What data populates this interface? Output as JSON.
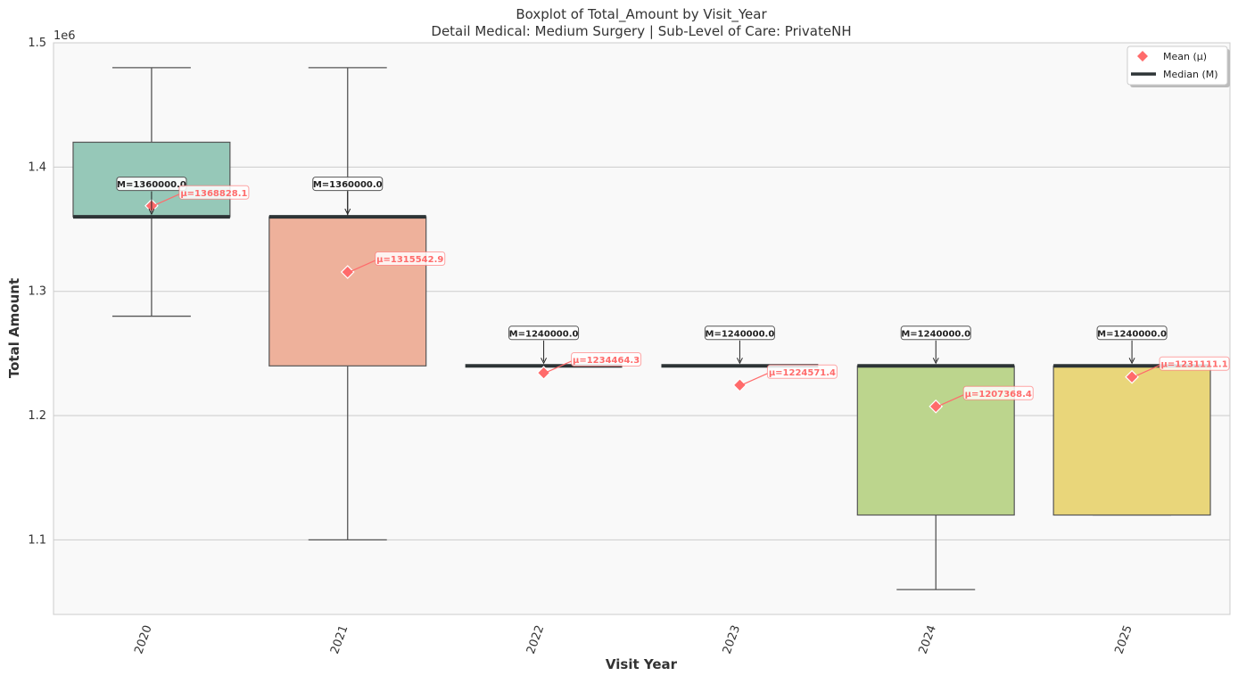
{
  "chart_data": {
    "type": "box",
    "title": "Boxplot of Total_Amount by Visit_Year",
    "subtitle": "Detail Medical: Medium Surgery | Sub-Level of Care: PrivateNH",
    "xlabel": "Visit Year",
    "ylabel": "Total Amount",
    "y_offset_label": "1e6",
    "ylim": [
      1.04,
      1.5
    ],
    "y_ticks": [
      1.1,
      1.2,
      1.3,
      1.4,
      1.5
    ],
    "y_tick_labels": [
      "1.1",
      "1.2",
      "1.3",
      "1.4",
      "1.5"
    ],
    "grid": true,
    "legend_position": "top-right",
    "legend": [
      {
        "label": "Mean (μ)",
        "color": "#ff6b6b",
        "marker": "diamond"
      },
      {
        "label": "Median (M)",
        "color": "#2d3436",
        "marker": "line"
      }
    ],
    "categories": [
      "2020",
      "2021",
      "2022",
      "2023",
      "2024",
      "2025"
    ],
    "boxes": [
      {
        "category": "2020",
        "whisker_low": 1.28,
        "q1": 1.36,
        "median": 1.36,
        "q3": 1.42,
        "whisker_high": 1.48,
        "mean": 1.3688281,
        "color": "#96c8b8",
        "median_label": "M=1360000.0",
        "mean_label": "μ=1368828.1"
      },
      {
        "category": "2021",
        "whisker_low": 1.1,
        "q1": 1.24,
        "median": 1.36,
        "q3": 1.36,
        "whisker_high": 1.48,
        "mean": 1.3155429,
        "color": "#eeb19b",
        "median_label": "M=1360000.0",
        "mean_label": "μ=1315542.9"
      },
      {
        "category": "2022",
        "whisker_low": 1.24,
        "q1": 1.24,
        "median": 1.24,
        "q3": 1.24,
        "whisker_high": 1.24,
        "mean": 1.2344643,
        "color": "#a5b3d2",
        "median_label": "M=1240000.0",
        "mean_label": "μ=1234464.3"
      },
      {
        "category": "2023",
        "whisker_low": 1.24,
        "q1": 1.24,
        "median": 1.24,
        "q3": 1.24,
        "whisker_high": 1.24,
        "mean": 1.2245714,
        "color": "#e2a8cf",
        "median_label": "M=1240000.0",
        "mean_label": "μ=1224571.4"
      },
      {
        "category": "2024",
        "whisker_low": 1.06,
        "q1": 1.12,
        "median": 1.24,
        "q3": 1.24,
        "whisker_high": 1.24,
        "mean": 1.2073684,
        "color": "#bcd58d",
        "median_label": "M=1240000.0",
        "mean_label": "μ=1207368.4"
      },
      {
        "category": "2025",
        "whisker_low": 1.12,
        "q1": 1.12,
        "median": 1.24,
        "q3": 1.24,
        "whisker_high": 1.24,
        "mean": 1.2311111,
        "color": "#e9d67a",
        "median_label": "M=1240000.0",
        "mean_label": "μ=1231111.1"
      }
    ],
    "colors": {
      "mean": "#ff6b6b",
      "median": "#2d3436",
      "whisker": "#555555",
      "plot_bg": "#f9f9f9",
      "grid": "#cccccc"
    }
  }
}
